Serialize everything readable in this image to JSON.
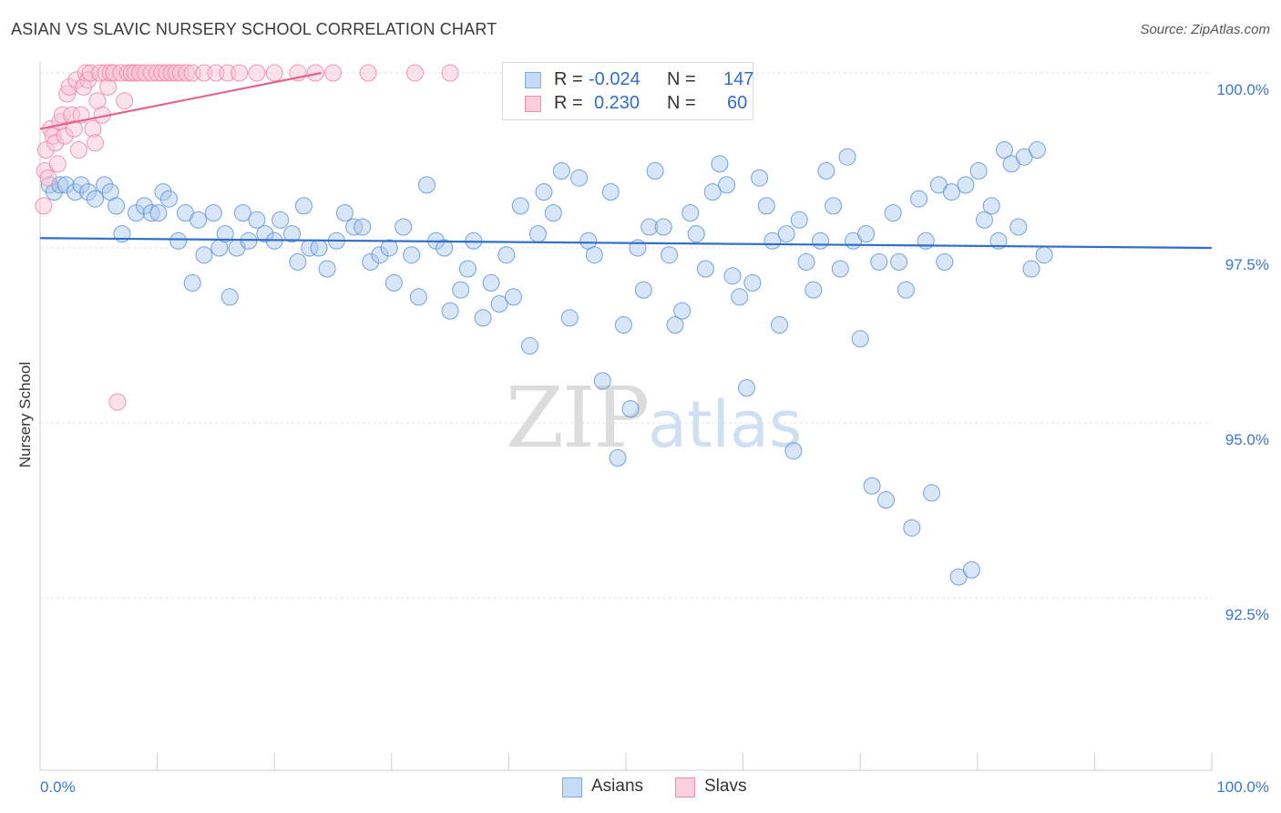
{
  "title": "ASIAN VS SLAVIC NURSERY SCHOOL CORRELATION CHART",
  "source": "Source: ZipAtlas.com",
  "watermark": {
    "zip": "ZIP",
    "atlas": "atlas"
  },
  "legend": {
    "rows": [
      {
        "r_label": "R =",
        "r_value": "-0.024",
        "n_label": "N =",
        "n_value": "147",
        "color": "#7aaee8",
        "fill": "#c5dbf6"
      },
      {
        "r_label": "R =",
        "r_value": " 0.230",
        "n_label": "N =",
        "n_value": " 60",
        "color": "#f090b0",
        "fill": "#fbcfdc"
      }
    ]
  },
  "chart_data": {
    "type": "scatter",
    "title": "ASIAN VS SLAVIC NURSERY SCHOOL CORRELATION CHART",
    "xlabel": "",
    "ylabel": "Nursery School",
    "xlim": [
      0,
      100
    ],
    "ylim": [
      90.0,
      100.0
    ],
    "x_ticks": [
      "0.0%",
      "100.0%"
    ],
    "y_ticks": [
      {
        "value": 100.0,
        "label": "100.0%"
      },
      {
        "value": 97.5,
        "label": "97.5%"
      },
      {
        "value": 95.0,
        "label": "95.0%"
      },
      {
        "value": 92.5,
        "label": "92.5%"
      }
    ],
    "grid": true,
    "legend_position": "bottom",
    "series": [
      {
        "name": "Asians",
        "color": "#5c95d9",
        "fill": "#aac8ee",
        "trend": {
          "x": [
            0,
            100
          ],
          "y": [
            97.64,
            97.5
          ]
        },
        "points": [
          [
            0.8,
            98.4
          ],
          [
            1.2,
            98.3
          ],
          [
            1.7,
            98.4
          ],
          [
            2.2,
            98.4
          ],
          [
            3.0,
            98.3
          ],
          [
            3.5,
            98.4
          ],
          [
            4.1,
            98.3
          ],
          [
            4.7,
            98.2
          ],
          [
            5.5,
            98.4
          ],
          [
            6.0,
            98.3
          ],
          [
            6.5,
            98.1
          ],
          [
            7.0,
            97.7
          ],
          [
            8.2,
            98.0
          ],
          [
            8.9,
            98.1
          ],
          [
            9.5,
            98.0
          ],
          [
            10.1,
            98.0
          ],
          [
            10.5,
            98.3
          ],
          [
            11.0,
            98.2
          ],
          [
            11.8,
            97.6
          ],
          [
            12.4,
            98.0
          ],
          [
            13.0,
            97.0
          ],
          [
            13.5,
            97.9
          ],
          [
            14.0,
            97.4
          ],
          [
            14.8,
            98.0
          ],
          [
            15.3,
            97.5
          ],
          [
            15.8,
            97.7
          ],
          [
            16.2,
            96.8
          ],
          [
            16.8,
            97.5
          ],
          [
            17.3,
            98.0
          ],
          [
            17.8,
            97.6
          ],
          [
            18.5,
            97.9
          ],
          [
            19.2,
            97.7
          ],
          [
            20.0,
            97.6
          ],
          [
            20.5,
            97.9
          ],
          [
            21.5,
            97.7
          ],
          [
            22.0,
            97.3
          ],
          [
            22.5,
            98.1
          ],
          [
            23.0,
            97.5
          ],
          [
            23.8,
            97.5
          ],
          [
            24.5,
            97.2
          ],
          [
            25.3,
            97.6
          ],
          [
            26.0,
            98.0
          ],
          [
            26.8,
            97.8
          ],
          [
            27.5,
            97.8
          ],
          [
            28.2,
            97.3
          ],
          [
            29.0,
            97.4
          ],
          [
            29.8,
            97.5
          ],
          [
            30.2,
            97.0
          ],
          [
            31.0,
            97.8
          ],
          [
            31.7,
            97.4
          ],
          [
            32.3,
            96.8
          ],
          [
            33.0,
            98.4
          ],
          [
            33.8,
            97.6
          ],
          [
            34.5,
            97.5
          ],
          [
            35.0,
            96.6
          ],
          [
            35.9,
            96.9
          ],
          [
            36.5,
            97.2
          ],
          [
            37.0,
            97.6
          ],
          [
            37.8,
            96.5
          ],
          [
            38.5,
            97.0
          ],
          [
            39.2,
            96.7
          ],
          [
            39.8,
            97.4
          ],
          [
            40.4,
            96.8
          ],
          [
            41.0,
            98.1
          ],
          [
            41.8,
            96.1
          ],
          [
            42.5,
            97.7
          ],
          [
            43.0,
            98.3
          ],
          [
            43.8,
            98.0
          ],
          [
            44.5,
            98.6
          ],
          [
            45.2,
            96.5
          ],
          [
            46.0,
            98.5
          ],
          [
            46.8,
            97.6
          ],
          [
            47.3,
            97.4
          ],
          [
            48.0,
            95.6
          ],
          [
            48.7,
            98.3
          ],
          [
            49.3,
            94.5
          ],
          [
            49.8,
            96.4
          ],
          [
            50.4,
            95.2
          ],
          [
            51.0,
            97.5
          ],
          [
            51.5,
            96.9
          ],
          [
            52.0,
            97.8
          ],
          [
            52.5,
            98.6
          ],
          [
            53.2,
            97.8
          ],
          [
            53.7,
            97.4
          ],
          [
            54.2,
            96.4
          ],
          [
            54.8,
            96.6
          ],
          [
            55.5,
            98.0
          ],
          [
            56.0,
            97.7
          ],
          [
            56.8,
            97.2
          ],
          [
            57.4,
            98.3
          ],
          [
            58.0,
            98.7
          ],
          [
            58.6,
            98.4
          ],
          [
            59.1,
            97.1
          ],
          [
            59.7,
            96.8
          ],
          [
            60.3,
            95.5
          ],
          [
            60.8,
            97.0
          ],
          [
            61.4,
            98.5
          ],
          [
            62.0,
            98.1
          ],
          [
            62.5,
            97.6
          ],
          [
            63.1,
            96.4
          ],
          [
            63.7,
            97.7
          ],
          [
            64.3,
            94.6
          ],
          [
            64.8,
            97.9
          ],
          [
            65.4,
            97.3
          ],
          [
            66.0,
            96.9
          ],
          [
            66.6,
            97.6
          ],
          [
            67.1,
            98.6
          ],
          [
            67.7,
            98.1
          ],
          [
            68.3,
            97.2
          ],
          [
            68.9,
            98.8
          ],
          [
            69.4,
            97.6
          ],
          [
            70.0,
            96.2
          ],
          [
            70.5,
            97.7
          ],
          [
            71.0,
            94.1
          ],
          [
            71.6,
            97.3
          ],
          [
            72.2,
            93.9
          ],
          [
            72.8,
            98.0
          ],
          [
            73.3,
            97.3
          ],
          [
            73.9,
            96.9
          ],
          [
            74.4,
            93.5
          ],
          [
            75.0,
            98.2
          ],
          [
            75.6,
            97.6
          ],
          [
            76.1,
            94.0
          ],
          [
            76.7,
            98.4
          ],
          [
            77.2,
            97.3
          ],
          [
            77.8,
            98.3
          ],
          [
            78.4,
            92.8
          ],
          [
            79.0,
            98.4
          ],
          [
            79.5,
            92.9
          ],
          [
            80.1,
            98.6
          ],
          [
            80.6,
            97.9
          ],
          [
            81.2,
            98.1
          ],
          [
            81.8,
            97.6
          ],
          [
            82.3,
            98.9
          ],
          [
            82.9,
            98.7
          ],
          [
            83.5,
            97.8
          ],
          [
            84.0,
            98.8
          ],
          [
            84.6,
            97.2
          ],
          [
            85.1,
            98.9
          ],
          [
            85.7,
            97.4
          ]
        ]
      },
      {
        "name": "Slavs",
        "color": "#ee86a8",
        "fill": "#f8c2d3",
        "trend": {
          "x": [
            0,
            24
          ],
          "y": [
            99.2,
            100.0
          ]
        },
        "points": [
          [
            0.3,
            98.1
          ],
          [
            0.4,
            98.6
          ],
          [
            0.5,
            98.9
          ],
          [
            0.7,
            98.5
          ],
          [
            0.9,
            99.2
          ],
          [
            1.1,
            99.1
          ],
          [
            1.3,
            99.0
          ],
          [
            1.5,
            98.7
          ],
          [
            1.7,
            99.3
          ],
          [
            1.9,
            99.4
          ],
          [
            2.1,
            99.1
          ],
          [
            2.3,
            99.7
          ],
          [
            2.5,
            99.8
          ],
          [
            2.7,
            99.4
          ],
          [
            2.9,
            99.2
          ],
          [
            3.1,
            99.9
          ],
          [
            3.3,
            98.9
          ],
          [
            3.5,
            99.4
          ],
          [
            3.7,
            99.8
          ],
          [
            3.9,
            100.0
          ],
          [
            4.1,
            99.9
          ],
          [
            4.3,
            100.0
          ],
          [
            4.5,
            99.2
          ],
          [
            4.7,
            99.0
          ],
          [
            4.9,
            99.6
          ],
          [
            5.1,
            100.0
          ],
          [
            5.3,
            99.4
          ],
          [
            5.6,
            100.0
          ],
          [
            5.8,
            99.8
          ],
          [
            6.0,
            100.0
          ],
          [
            6.3,
            100.0
          ],
          [
            6.6,
            95.3
          ],
          [
            6.9,
            100.0
          ],
          [
            7.2,
            99.6
          ],
          [
            7.5,
            100.0
          ],
          [
            7.8,
            100.0
          ],
          [
            8.1,
            100.0
          ],
          [
            8.5,
            100.0
          ],
          [
            9.0,
            100.0
          ],
          [
            9.5,
            100.0
          ],
          [
            10.0,
            100.0
          ],
          [
            10.4,
            100.0
          ],
          [
            10.8,
            100.0
          ],
          [
            11.2,
            100.0
          ],
          [
            11.6,
            100.0
          ],
          [
            12.0,
            100.0
          ],
          [
            12.5,
            100.0
          ],
          [
            13.0,
            100.0
          ],
          [
            14.0,
            100.0
          ],
          [
            15.0,
            100.0
          ],
          [
            16.0,
            100.0
          ],
          [
            17.0,
            100.0
          ],
          [
            18.5,
            100.0
          ],
          [
            20.0,
            100.0
          ],
          [
            22.0,
            100.0
          ],
          [
            23.5,
            100.0
          ],
          [
            25.0,
            100.0
          ],
          [
            28.0,
            100.0
          ],
          [
            32.0,
            100.0
          ],
          [
            35.0,
            100.0
          ]
        ]
      }
    ]
  },
  "bottom_legend": [
    {
      "label": "Asians",
      "color": "#7aaee8",
      "fill": "#c5dbf6"
    },
    {
      "label": "Slavs",
      "color": "#f090b0",
      "fill": "#fbcfdc"
    }
  ]
}
